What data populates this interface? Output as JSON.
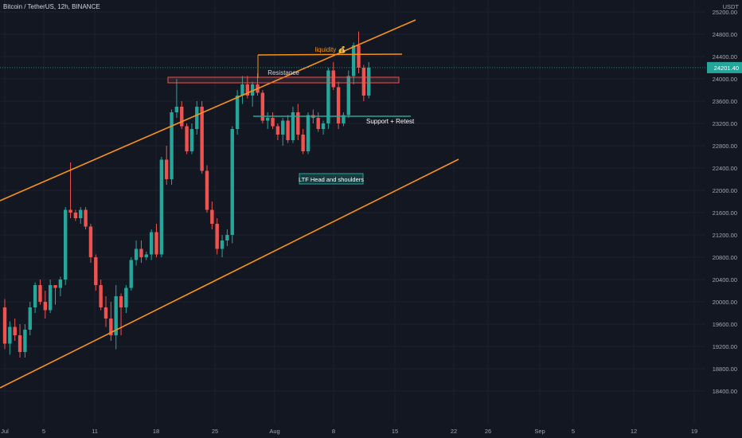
{
  "header": {
    "title": "Bitcoin / TetherUS, 12h, BINANCE"
  },
  "axis": {
    "currency": "USDT"
  },
  "price_tag": {
    "text": "24201.40"
  },
  "colors": {
    "background": "#131722",
    "grid": "#1e222d",
    "up": "#26a69a",
    "down": "#ef5350",
    "channel": "#f7931a",
    "support": "#26a69a",
    "resistance": "#ef5350",
    "text": "#d1d4dc",
    "axis_text": "#a3a6af"
  },
  "annotations": {
    "liquidity": "liquidity 💰",
    "resistance": "Resistance",
    "support": "Support + Retest",
    "pattern": "LTF Head and shoulders"
  },
  "chart_data": {
    "type": "candlestick",
    "title": "Bitcoin / TetherUS, 12h, BINANCE",
    "ylabel": "USDT",
    "ylim": [
      18300,
      25600
    ],
    "y_ticks": [
      18400,
      18800,
      19200,
      19600,
      20000,
      20400,
      20800,
      21200,
      21600,
      22000,
      22400,
      22800,
      23200,
      23600,
      24000,
      24400,
      24800,
      25200
    ],
    "y_tick_labels": [
      "18400.00",
      "18800.00",
      "19200.00",
      "19600.00",
      "20000.00",
      "20400.00",
      "20800.00",
      "21200.00",
      "21600.00",
      "22000.00",
      "22400.00",
      "22800.00",
      "23200.00",
      "23600.00",
      "24000.00",
      "24400.00",
      "24800.00",
      "25200.00"
    ],
    "x_labels": [
      "Jul",
      "5",
      "11",
      "18",
      "25",
      "Aug",
      "8",
      "15",
      "22",
      "26",
      "Sep",
      "5",
      "12",
      "19"
    ],
    "last_price": 24201.4,
    "candles": [
      [
        19900,
        20050,
        19150,
        19250
      ],
      [
        19250,
        19650,
        19050,
        19550
      ],
      [
        19550,
        19700,
        19300,
        19400
      ],
      [
        19400,
        19600,
        19000,
        19100
      ],
      [
        19100,
        19600,
        19000,
        19500
      ],
      [
        19500,
        20000,
        19400,
        19900
      ],
      [
        19900,
        20350,
        19800,
        20300
      ],
      [
        20300,
        20400,
        19950,
        20000
      ],
      [
        20000,
        20200,
        19700,
        19850
      ],
      [
        19850,
        20400,
        19800,
        20300
      ],
      [
        20300,
        20300,
        19950,
        20250
      ],
      [
        20250,
        20450,
        20100,
        20400
      ],
      [
        20400,
        21700,
        20300,
        21650
      ],
      [
        21650,
        22500,
        21500,
        21600
      ],
      [
        21600,
        21650,
        21450,
        21500
      ],
      [
        21500,
        21700,
        21400,
        21650
      ],
      [
        21650,
        21700,
        21300,
        21350
      ],
      [
        21350,
        21400,
        20700,
        20800
      ],
      [
        20800,
        20850,
        20200,
        20300
      ],
      [
        20300,
        20400,
        19850,
        19900
      ],
      [
        19900,
        20100,
        19550,
        19700
      ],
      [
        19700,
        20000,
        19300,
        19400
      ],
      [
        19400,
        20300,
        19150,
        20100
      ],
      [
        20100,
        20150,
        19400,
        19900
      ],
      [
        19900,
        20300,
        19800,
        20250
      ],
      [
        20250,
        20800,
        20200,
        20750
      ],
      [
        20750,
        21100,
        20650,
        20950
      ],
      [
        20950,
        21100,
        20700,
        20800
      ],
      [
        20800,
        20900,
        20750,
        20850
      ],
      [
        20850,
        21300,
        20750,
        21250
      ],
      [
        21250,
        21400,
        20800,
        20850
      ],
      [
        20850,
        22600,
        20800,
        22550
      ],
      [
        22550,
        22800,
        22100,
        22200
      ],
      [
        22200,
        23450,
        22100,
        23400
      ],
      [
        23400,
        24000,
        23300,
        23500
      ],
      [
        23500,
        23600,
        23100,
        23150
      ],
      [
        23150,
        23200,
        22650,
        22700
      ],
      [
        22700,
        23200,
        22650,
        23100
      ],
      [
        23100,
        23600,
        23000,
        23500
      ],
      [
        23500,
        23600,
        22300,
        22350
      ],
      [
        22350,
        22450,
        21600,
        21650
      ],
      [
        21650,
        21800,
        21300,
        21400
      ],
      [
        21400,
        21500,
        20850,
        20950
      ],
      [
        20950,
        21200,
        20800,
        21100
      ],
      [
        21100,
        21300,
        21000,
        21200
      ],
      [
        21200,
        23150,
        21050,
        23100
      ],
      [
        23100,
        23800,
        23000,
        23700
      ],
      [
        23700,
        24050,
        23550,
        23900
      ],
      [
        23900,
        24050,
        23650,
        23700
      ],
      [
        23700,
        23950,
        23500,
        23900
      ],
      [
        23900,
        24100,
        23700,
        23750
      ],
      [
        23750,
        23800,
        23200,
        23250
      ],
      [
        23250,
        23400,
        23100,
        23300
      ],
      [
        23300,
        23400,
        23100,
        23150
      ],
      [
        23150,
        23200,
        22900,
        23000
      ],
      [
        23000,
        23300,
        22800,
        23250
      ],
      [
        23250,
        23350,
        22850,
        22900
      ],
      [
        22900,
        23500,
        22850,
        23400
      ],
      [
        23400,
        23550,
        22900,
        23000
      ],
      [
        23000,
        23100,
        22650,
        22700
      ],
      [
        22700,
        23400,
        22650,
        23350
      ],
      [
        23350,
        23450,
        23200,
        23300
      ],
      [
        23300,
        23400,
        23050,
        23100
      ],
      [
        23100,
        23250,
        23000,
        23200
      ],
      [
        23200,
        24200,
        23100,
        24150
      ],
      [
        24150,
        24300,
        23800,
        23850
      ],
      [
        23850,
        23950,
        23100,
        23200
      ],
      [
        23200,
        23400,
        23150,
        23350
      ],
      [
        23350,
        24150,
        23300,
        24050
      ],
      [
        24050,
        24650,
        23900,
        24600
      ],
      [
        24600,
        24850,
        24100,
        24200
      ],
      [
        24200,
        24250,
        23600,
        23700
      ],
      [
        23700,
        24300,
        23650,
        24201.4
      ]
    ]
  }
}
